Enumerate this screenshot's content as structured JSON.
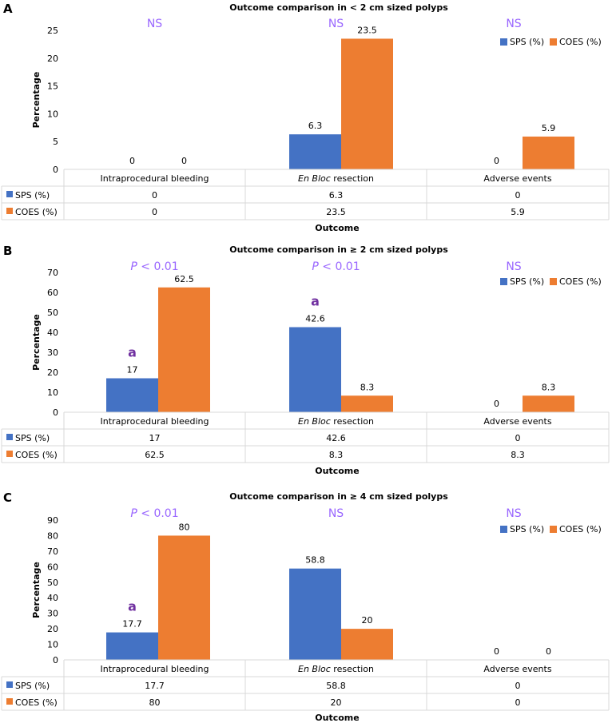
{
  "colors": {
    "sps": "#4472C4",
    "coes": "#ED7D31",
    "sig": "#9966FF",
    "marker": "#7030A0",
    "grid": "#D9D9D9",
    "text": "#000000"
  },
  "panels": [
    {
      "letter": "A",
      "title": "Outcome comparison in < 2 cm sized polyps",
      "ylabel": "Percentage",
      "xlabel": "Outcome",
      "legend": [
        "SPS (%)",
        "COES (%)"
      ],
      "significance": [
        "NS",
        "NS",
        "NS"
      ],
      "markers": [
        "",
        "",
        ""
      ],
      "table_rows": [
        {
          "label": "SPS (%)",
          "cells": [
            "0",
            "6.3",
            "0"
          ]
        },
        {
          "label": "COES (%)",
          "cells": [
            "0",
            "23.5",
            "5.9"
          ]
        }
      ]
    },
    {
      "letter": "B",
      "title": "Outcome comparison in ≥ 2 cm sized polyps",
      "ylabel": "Percentage",
      "xlabel": "Outcome",
      "legend": [
        "SPS (%)",
        "COES (%)"
      ],
      "significance": [
        "P < 0.01",
        "P < 0.01",
        "NS"
      ],
      "markers": [
        "a",
        "a",
        ""
      ],
      "table_rows": [
        {
          "label": "SPS (%)",
          "cells": [
            "17",
            "42.6",
            "0"
          ]
        },
        {
          "label": "COES (%)",
          "cells": [
            "62.5",
            "8.3",
            "8.3"
          ]
        }
      ]
    },
    {
      "letter": "C",
      "title": "Outcome comparison in ≥ 4 cm sized polyps",
      "ylabel": "Percentage",
      "xlabel": "Outcome",
      "legend": [
        "SPS (%)",
        "COES (%)"
      ],
      "significance": [
        "P < 0.01",
        "NS",
        "NS"
      ],
      "markers": [
        "a",
        "",
        ""
      ],
      "table_rows": [
        {
          "label": "SPS (%)",
          "cells": [
            "17.7",
            "58.8",
            "0"
          ]
        },
        {
          "label": "COES (%)",
          "cells": [
            "80",
            "20",
            "0"
          ]
        }
      ]
    }
  ],
  "chart_data": [
    {
      "type": "bar",
      "title": "Outcome comparison in < 2 cm sized polyps",
      "categories": [
        "Intraprocedural bleeding",
        "En Bloc resection",
        "Adverse events"
      ],
      "series": [
        {
          "name": "SPS (%)",
          "values": [
            0,
            6.3,
            0
          ]
        },
        {
          "name": "COES (%)",
          "values": [
            0,
            23.5,
            5.9
          ]
        }
      ],
      "xlabel": "Outcome",
      "ylabel": "Percentage",
      "ylim": [
        0,
        25
      ],
      "yticks": [
        0,
        5,
        10,
        15,
        20,
        25
      ],
      "data_labels": [
        [
          "0",
          "6.3",
          "0"
        ],
        [
          "0",
          "23.5",
          "5.9"
        ]
      ],
      "legend": "top-right",
      "grid": false
    },
    {
      "type": "bar",
      "title": "Outcome comparison in ≥ 2 cm sized polyps",
      "categories": [
        "Intraprocedural bleeding",
        "En Bloc resection",
        "Adverse events"
      ],
      "series": [
        {
          "name": "SPS (%)",
          "values": [
            17,
            42.6,
            0
          ]
        },
        {
          "name": "COES (%)",
          "values": [
            62.5,
            8.3,
            8.3
          ]
        }
      ],
      "xlabel": "Outcome",
      "ylabel": "Percentage",
      "ylim": [
        0,
        70
      ],
      "yticks": [
        0,
        10,
        20,
        30,
        40,
        50,
        60,
        70
      ],
      "data_labels": [
        [
          "17",
          "42.6",
          "0"
        ],
        [
          "62.5",
          "8.3",
          "8.3"
        ]
      ],
      "legend": "top-right",
      "grid": false
    },
    {
      "type": "bar",
      "title": "Outcome comparison in ≥ 4 cm sized polyps",
      "categories": [
        "Intraprocedural bleeding",
        "En Bloc resection",
        "Adverse events"
      ],
      "series": [
        {
          "name": "SPS (%)",
          "values": [
            17.7,
            58.8,
            0
          ]
        },
        {
          "name": "COES (%)",
          "values": [
            80,
            20,
            0
          ]
        }
      ],
      "xlabel": "Outcome",
      "ylabel": "Percentage",
      "ylim": [
        0,
        90
      ],
      "yticks": [
        0,
        10,
        20,
        30,
        40,
        50,
        60,
        70,
        80,
        90
      ],
      "data_labels": [
        [
          "17.7",
          "58.8",
          "0"
        ],
        [
          "80",
          "20",
          "0"
        ]
      ],
      "legend": "top-right",
      "grid": false
    }
  ]
}
